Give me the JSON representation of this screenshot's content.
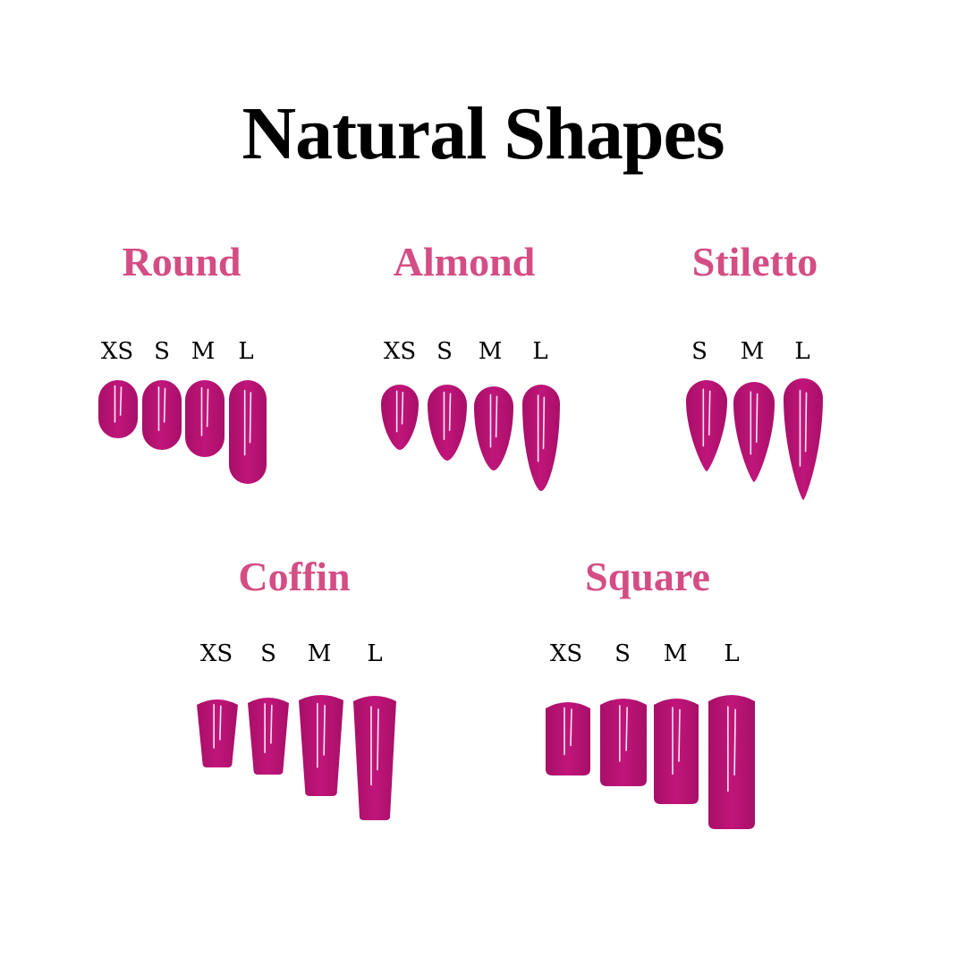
{
  "title": "Natural Shapes",
  "colors": {
    "heading": "#d44d84",
    "nail": "#c0157a",
    "nail_dark": "#a80f68",
    "title": "#000000"
  },
  "groups": [
    {
      "name": "Round",
      "shape": "round",
      "sizes": [
        "XS",
        "S",
        "M",
        "L"
      ]
    },
    {
      "name": "Almond",
      "shape": "almond",
      "sizes": [
        "XS",
        "S",
        "M",
        "L"
      ]
    },
    {
      "name": "Stiletto",
      "shape": "stiletto",
      "sizes": [
        "S",
        "M",
        "L"
      ]
    },
    {
      "name": "Coffin",
      "shape": "coffin",
      "sizes": [
        "XS",
        "S",
        "M",
        "L"
      ]
    },
    {
      "name": "Square",
      "shape": "square",
      "sizes": [
        "XS",
        "S",
        "M",
        "L"
      ]
    }
  ]
}
